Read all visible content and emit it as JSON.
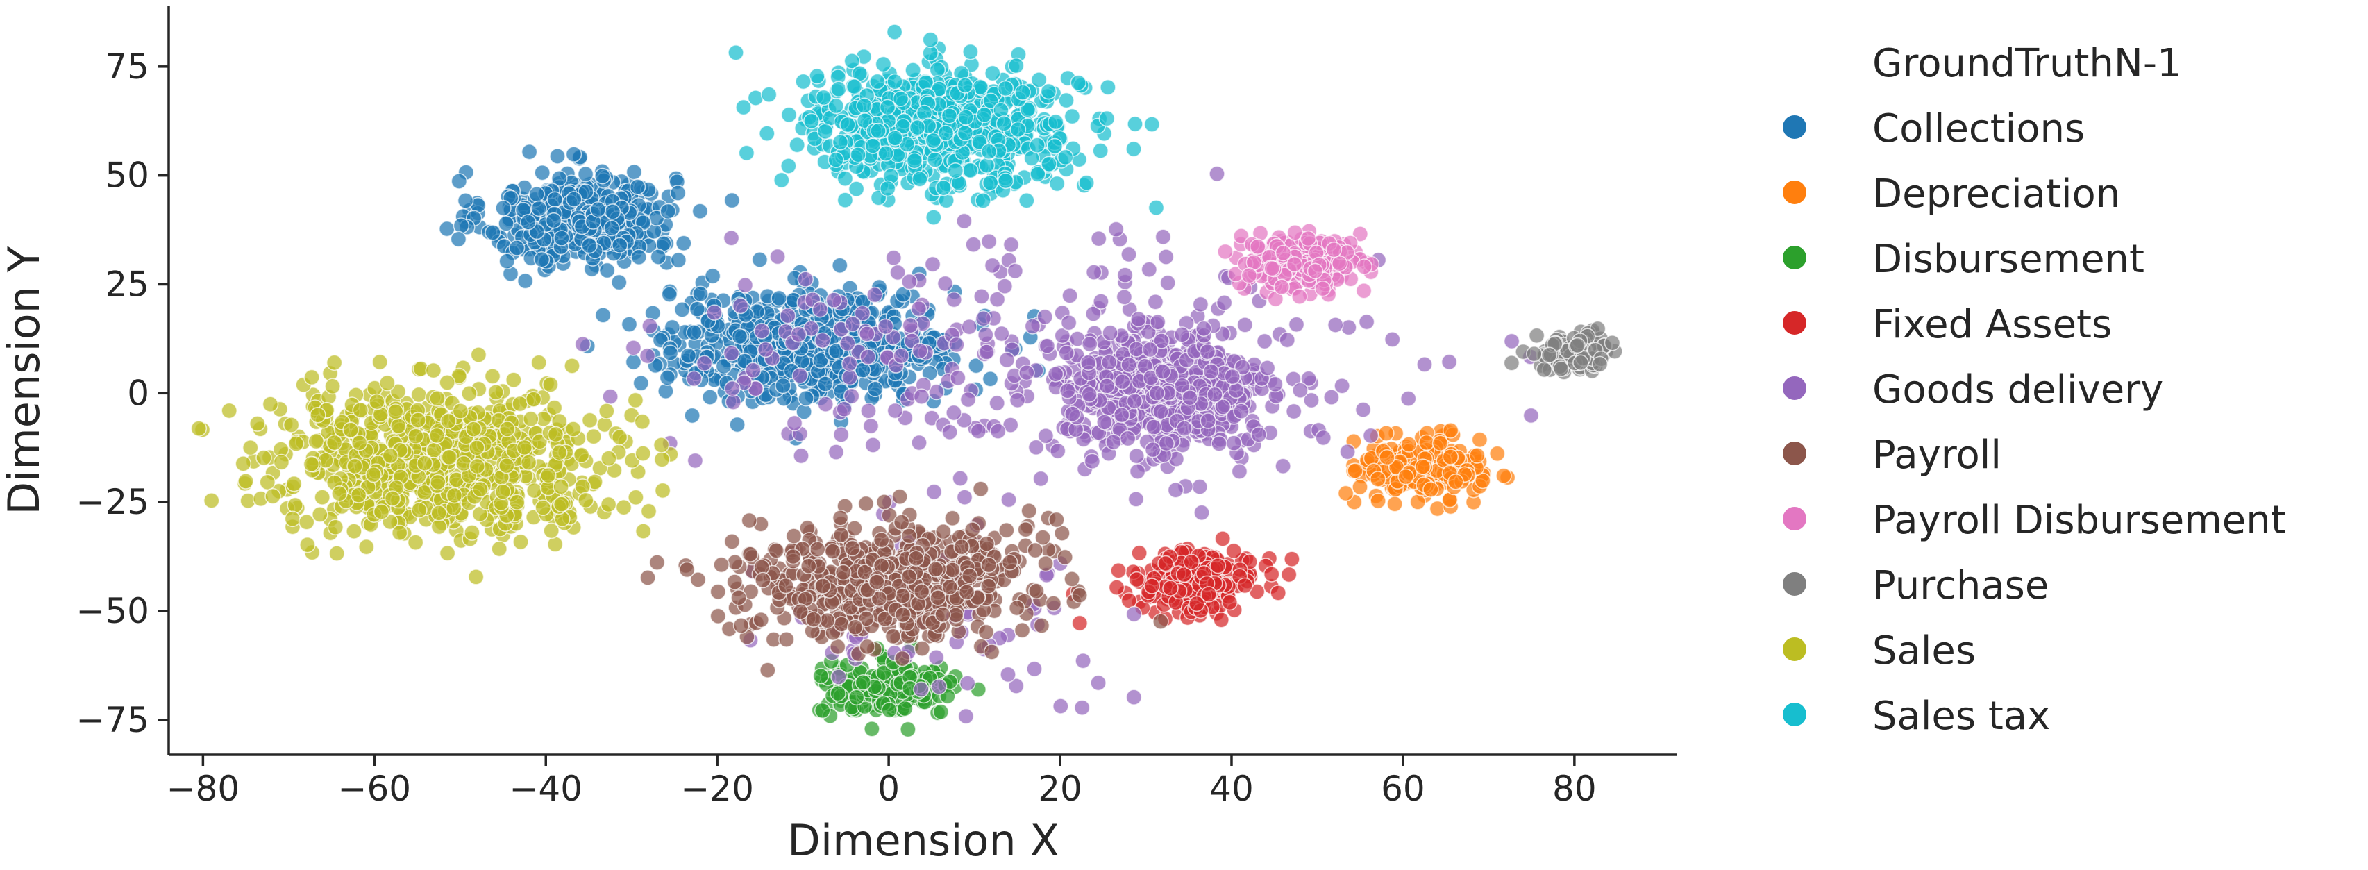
{
  "chart_data": {
    "type": "scatter",
    "title": "",
    "xlabel": "Dimension X",
    "ylabel": "Dimension Y",
    "xlim": [
      -84,
      92
    ],
    "ylim": [
      -83,
      89
    ],
    "xticks": [
      -80,
      -60,
      -40,
      -20,
      0,
      20,
      40,
      60,
      80
    ],
    "yticks": [
      -75,
      -50,
      -25,
      0,
      25,
      50,
      75
    ],
    "xtick_labels": [
      "−80",
      "−60",
      "−40",
      "−20",
      "0",
      "20",
      "40",
      "60",
      "80"
    ],
    "ytick_labels": [
      "−75",
      "−50",
      "−25",
      "0",
      "25",
      "50",
      "75"
    ],
    "grid": false,
    "legend": {
      "title": "GroundTruthN-1",
      "placement": "outside-right"
    },
    "series": [
      {
        "name": "Collections",
        "color": "#1f77b4",
        "clusters": [
          {
            "cx": -36,
            "cy": 40,
            "sx": 5.5,
            "sy": 5.5,
            "n": 420
          },
          {
            "cx": -9,
            "cy": 11,
            "sx": 9,
            "sy": 6.5,
            "n": 560
          }
        ]
      },
      {
        "name": "Depreciation",
        "color": "#ff7f0e",
        "clusters": [
          {
            "cx": 62,
            "cy": -17,
            "sx": 3.5,
            "sy": 3.5,
            "n": 220
          }
        ]
      },
      {
        "name": "Disbursement",
        "color": "#2ca02c",
        "clusters": [
          {
            "cx": 0,
            "cy": -68,
            "sx": 4,
            "sy": 3,
            "n": 190
          }
        ]
      },
      {
        "name": "Fixed Assets",
        "color": "#d62728",
        "clusters": [
          {
            "cx": 36,
            "cy": -43,
            "sx": 3.5,
            "sy": 3.5,
            "n": 230
          }
        ]
      },
      {
        "name": "Goods delivery",
        "color": "#9467bd",
        "clusters": [
          {
            "cx": 32,
            "cy": 0,
            "sx": 6.5,
            "sy": 7.5,
            "n": 520
          },
          {
            "cx": 28,
            "cy": 5,
            "sx": 20,
            "sy": 16,
            "n": 160
          },
          {
            "cx": 0,
            "cy": 10,
            "sx": 14,
            "sy": 10,
            "n": 110
          },
          {
            "cx": 5,
            "cy": -50,
            "sx": 10,
            "sy": 13,
            "n": 70
          }
        ]
      },
      {
        "name": "Payroll",
        "color": "#8c564b",
        "clusters": [
          {
            "cx": 0,
            "cy": -43,
            "sx": 8.5,
            "sy": 7,
            "n": 560
          }
        ]
      },
      {
        "name": "Payroll Disbursement",
        "color": "#e377c2",
        "clusters": [
          {
            "cx": 48,
            "cy": 30,
            "sx": 3.5,
            "sy": 3,
            "n": 220
          }
        ]
      },
      {
        "name": "Purchase",
        "color": "#7f7f7f",
        "clusters": [
          {
            "cx": 80,
            "cy": 9,
            "sx": 2.5,
            "sy": 2.2,
            "n": 110
          }
        ]
      },
      {
        "name": "Sales",
        "color": "#bcbd22",
        "clusters": [
          {
            "cx": -52,
            "cy": -15,
            "sx": 10,
            "sy": 8,
            "n": 800
          }
        ]
      },
      {
        "name": "Sales tax",
        "color": "#17becf",
        "clusters": [
          {
            "cx": 6,
            "cy": 61,
            "sx": 8,
            "sy": 7,
            "n": 620
          }
        ]
      }
    ]
  }
}
